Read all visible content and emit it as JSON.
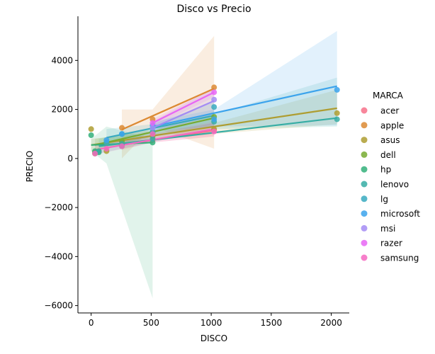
{
  "chart_data": {
    "type": "scatter",
    "title": "Disco vs Precio",
    "xlabel": "DISCO",
    "ylabel": "PRECIO",
    "xlim": [
      -110,
      2150
    ],
    "ylim": [
      -6300,
      5800
    ],
    "xticks": [
      0,
      500,
      1000,
      1500,
      2000
    ],
    "xtick_labels": [
      "0",
      "500",
      "1000",
      "1500",
      "2000"
    ],
    "yticks": [
      -6000,
      -4000,
      -2000,
      0,
      2000,
      4000
    ],
    "ytick_labels": [
      "−6000",
      "−4000",
      "−2000",
      "0",
      "2000",
      "4000"
    ],
    "grid": false,
    "legend_title": "MARCA",
    "legend_position": "right",
    "series": [
      {
        "name": "acer",
        "color": "#f77189",
        "points": [
          [
            256,
            550
          ],
          [
            512,
            750
          ],
          [
            1024,
            1150
          ]
        ],
        "fit": [
          [
            256,
            550
          ],
          [
            1024,
            1150
          ]
        ],
        "band": [
          [
            256,
            350,
            750
          ],
          [
            512,
            650,
            900
          ],
          [
            1024,
            900,
            1450
          ]
        ]
      },
      {
        "name": "apple",
        "color": "#dc8932",
        "points": [
          [
            256,
            1250
          ],
          [
            512,
            1600
          ],
          [
            1024,
            2900
          ]
        ],
        "fit": [
          [
            256,
            1180
          ],
          [
            1024,
            2850
          ]
        ],
        "band": [
          [
            256,
            0,
            2000
          ],
          [
            512,
            1300,
            2000
          ],
          [
            1024,
            400,
            5000
          ]
        ]
      },
      {
        "name": "asus",
        "color": "#ae9d31",
        "points": [
          [
            0,
            1200
          ],
          [
            32,
            250
          ],
          [
            64,
            300
          ],
          [
            128,
            300
          ],
          [
            256,
            700
          ],
          [
            512,
            900
          ],
          [
            1024,
            1200
          ],
          [
            2048,
            1850
          ]
        ],
        "fit": [
          [
            0,
            550
          ],
          [
            2048,
            2050
          ]
        ],
        "band": [
          [
            0,
            300,
            800
          ],
          [
            512,
            750,
            1050
          ],
          [
            1024,
            1000,
            1450
          ],
          [
            2048,
            1400,
            2800
          ]
        ]
      },
      {
        "name": "dell",
        "color": "#77ab31",
        "points": [
          [
            32,
            200
          ],
          [
            128,
            650
          ],
          [
            256,
            700
          ],
          [
            512,
            1050
          ],
          [
            1024,
            1700
          ]
        ],
        "fit": [
          [
            32,
            550
          ],
          [
            1024,
            1650
          ]
        ],
        "band": [
          [
            32,
            300,
            800
          ],
          [
            512,
            900,
            1150
          ],
          [
            1024,
            1400,
            1900
          ]
        ]
      },
      {
        "name": "hp",
        "color": "#33b07a",
        "points": [
          [
            0,
            950
          ],
          [
            32,
            300
          ],
          [
            64,
            250
          ],
          [
            256,
            500
          ],
          [
            512,
            650
          ]
        ],
        "fit": [
          [
            0,
            550
          ],
          [
            512,
            650
          ]
        ],
        "band": [
          [
            0,
            300,
            800
          ],
          [
            128,
            -200,
            1300
          ],
          [
            512,
            -5700,
            800
          ]
        ]
      },
      {
        "name": "lenovo",
        "color": "#36ada4",
        "points": [
          [
            64,
            300
          ],
          [
            256,
            600
          ],
          [
            512,
            800
          ],
          [
            1024,
            1500
          ],
          [
            2048,
            1600
          ]
        ],
        "fit": [
          [
            64,
            500
          ],
          [
            2048,
            1650
          ]
        ],
        "band": [
          [
            64,
            200,
            800
          ],
          [
            1024,
            1200,
            1800
          ],
          [
            2048,
            1300,
            3300
          ]
        ]
      },
      {
        "name": "lg",
        "color": "#38aabf",
        "points": [
          [
            128,
            650
          ],
          [
            256,
            1000
          ],
          [
            512,
            1100
          ],
          [
            1024,
            2100
          ]
        ],
        "fit": [
          [
            128,
            850
          ],
          [
            1024,
            1750
          ]
        ],
        "band": [
          [
            128,
            500,
            1200
          ],
          [
            512,
            900,
            1400
          ],
          [
            1024,
            1300,
            2300
          ]
        ]
      },
      {
        "name": "microsoft",
        "color": "#3ba3ec",
        "points": [
          [
            128,
            750
          ],
          [
            256,
            1000
          ],
          [
            512,
            1350
          ],
          [
            1024,
            1600
          ],
          [
            2048,
            2800
          ]
        ],
        "fit": [
          [
            512,
            1300
          ],
          [
            2048,
            2950
          ]
        ],
        "band": [
          [
            512,
            1100,
            1500
          ],
          [
            1024,
            1300,
            2000
          ],
          [
            2048,
            1350,
            5200
          ]
        ]
      },
      {
        "name": "msi",
        "color": "#a48cf4",
        "points": [
          [
            512,
            1250
          ],
          [
            1024,
            2400
          ]
        ],
        "fit": [
          [
            512,
            1250
          ],
          [
            1024,
            2350
          ]
        ],
        "band": [
          [
            512,
            1000,
            1500
          ],
          [
            1024,
            1800,
            2900
          ]
        ]
      },
      {
        "name": "razer",
        "color": "#e866f4",
        "points": [
          [
            512,
            1450
          ],
          [
            1024,
            2700
          ]
        ],
        "fit": [
          [
            512,
            1450
          ],
          [
            1024,
            2700
          ]
        ],
        "band": [
          [
            512,
            1300,
            1600
          ],
          [
            1024,
            2500,
            2900
          ]
        ]
      },
      {
        "name": "samsung",
        "color": "#f668c2",
        "points": [
          [
            32,
            200
          ],
          [
            128,
            400
          ],
          [
            256,
            500
          ],
          [
            512,
            1000
          ],
          [
            1024,
            1100
          ]
        ],
        "fit": [
          [
            32,
            350
          ],
          [
            1024,
            1200
          ]
        ],
        "band": [
          [
            32,
            150,
            550
          ],
          [
            512,
            650,
            1000
          ],
          [
            1024,
            900,
            1500
          ]
        ]
      }
    ]
  }
}
